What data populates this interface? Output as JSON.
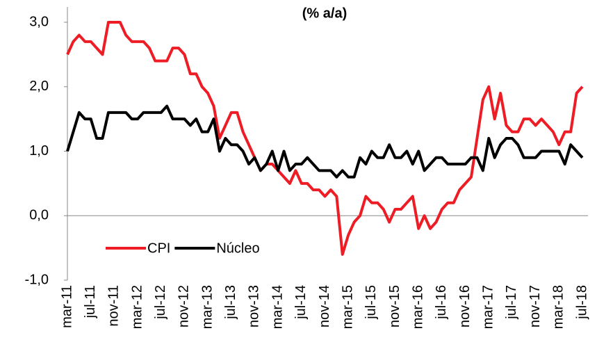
{
  "chart_data": {
    "type": "line",
    "title": "(% a/a)",
    "categories": [
      "mar-11",
      null,
      null,
      null,
      "jul-11",
      null,
      null,
      null,
      "nov-11",
      null,
      null,
      null,
      "mar-12",
      null,
      null,
      null,
      "jul-12",
      null,
      null,
      null,
      "nov-12",
      null,
      null,
      null,
      "mar-13",
      null,
      null,
      null,
      "jul-13",
      null,
      null,
      null,
      "nov-13",
      null,
      null,
      null,
      "mar-14",
      null,
      null,
      null,
      "jul-14",
      null,
      null,
      null,
      "nov-14",
      null,
      null,
      null,
      "mar-15",
      null,
      null,
      null,
      "jul-15",
      null,
      null,
      null,
      "nov-15",
      null,
      null,
      null,
      "mar-16",
      null,
      null,
      null,
      "jul-16",
      null,
      null,
      null,
      "nov-16",
      null,
      null,
      null,
      "mar-17",
      null,
      null,
      null,
      "jul-17",
      null,
      null,
      null,
      "nov-17",
      null,
      null,
      null,
      "mar-18",
      null,
      null,
      null,
      "jul-18"
    ],
    "series": [
      {
        "name": "CPI",
        "color": "#ee1c25",
        "values": [
          2.5,
          2.7,
          2.8,
          2.7,
          2.7,
          2.6,
          2.5,
          3.0,
          3.0,
          3.0,
          2.8,
          2.7,
          2.7,
          2.7,
          2.6,
          2.4,
          2.4,
          2.4,
          2.6,
          2.6,
          2.5,
          2.2,
          2.2,
          2.0,
          1.9,
          1.7,
          1.2,
          1.4,
          1.6,
          1.6,
          1.3,
          1.1,
          0.9,
          0.7,
          0.8,
          0.8,
          0.7,
          0.6,
          0.5,
          0.7,
          0.5,
          0.5,
          0.4,
          0.4,
          0.3,
          0.4,
          0.3,
          -0.6,
          -0.3,
          -0.1,
          0.0,
          0.3,
          0.2,
          0.2,
          0.1,
          -0.1,
          0.1,
          0.1,
          0.2,
          0.3,
          -0.2,
          0.0,
          -0.2,
          -0.1,
          0.1,
          0.2,
          0.2,
          0.4,
          0.5,
          0.6,
          1.2,
          1.8,
          2.0,
          1.5,
          1.9,
          1.4,
          1.3,
          1.3,
          1.5,
          1.5,
          1.4,
          1.5,
          1.4,
          1.3,
          1.1,
          1.3,
          1.3,
          1.9,
          2.0
        ]
      },
      {
        "name": "Núcleo",
        "color": "#000000",
        "values": [
          1.0,
          1.3,
          1.6,
          1.5,
          1.5,
          1.2,
          1.2,
          1.6,
          1.6,
          1.6,
          1.6,
          1.5,
          1.5,
          1.6,
          1.6,
          1.6,
          1.6,
          1.7,
          1.5,
          1.5,
          1.5,
          1.4,
          1.5,
          1.3,
          1.3,
          1.5,
          1.0,
          1.2,
          1.1,
          1.1,
          1.0,
          0.8,
          0.9,
          0.7,
          0.8,
          1.0,
          0.7,
          1.0,
          0.7,
          0.8,
          0.8,
          0.9,
          0.8,
          0.7,
          0.7,
          0.7,
          0.6,
          0.7,
          0.6,
          0.6,
          0.9,
          0.8,
          1.0,
          0.9,
          0.9,
          1.1,
          0.9,
          0.9,
          1.0,
          0.8,
          1.0,
          0.7,
          0.8,
          0.9,
          0.9,
          0.8,
          0.8,
          0.8,
          0.8,
          0.9,
          0.9,
          0.7,
          1.2,
          0.9,
          1.1,
          1.2,
          1.2,
          1.1,
          0.9,
          0.9,
          0.9,
          1.0,
          1.0,
          1.0,
          1.0,
          0.8,
          1.1,
          1.0,
          0.9
        ]
      }
    ],
    "ylim": [
      -1,
      3
    ],
    "yticks": [
      {
        "value": -1,
        "label": "-1,0"
      },
      {
        "value": 0,
        "label": "0,0"
      },
      {
        "value": 1,
        "label": "1,0"
      },
      {
        "value": 2,
        "label": "2,0"
      },
      {
        "value": 3,
        "label": "3,0"
      }
    ]
  }
}
